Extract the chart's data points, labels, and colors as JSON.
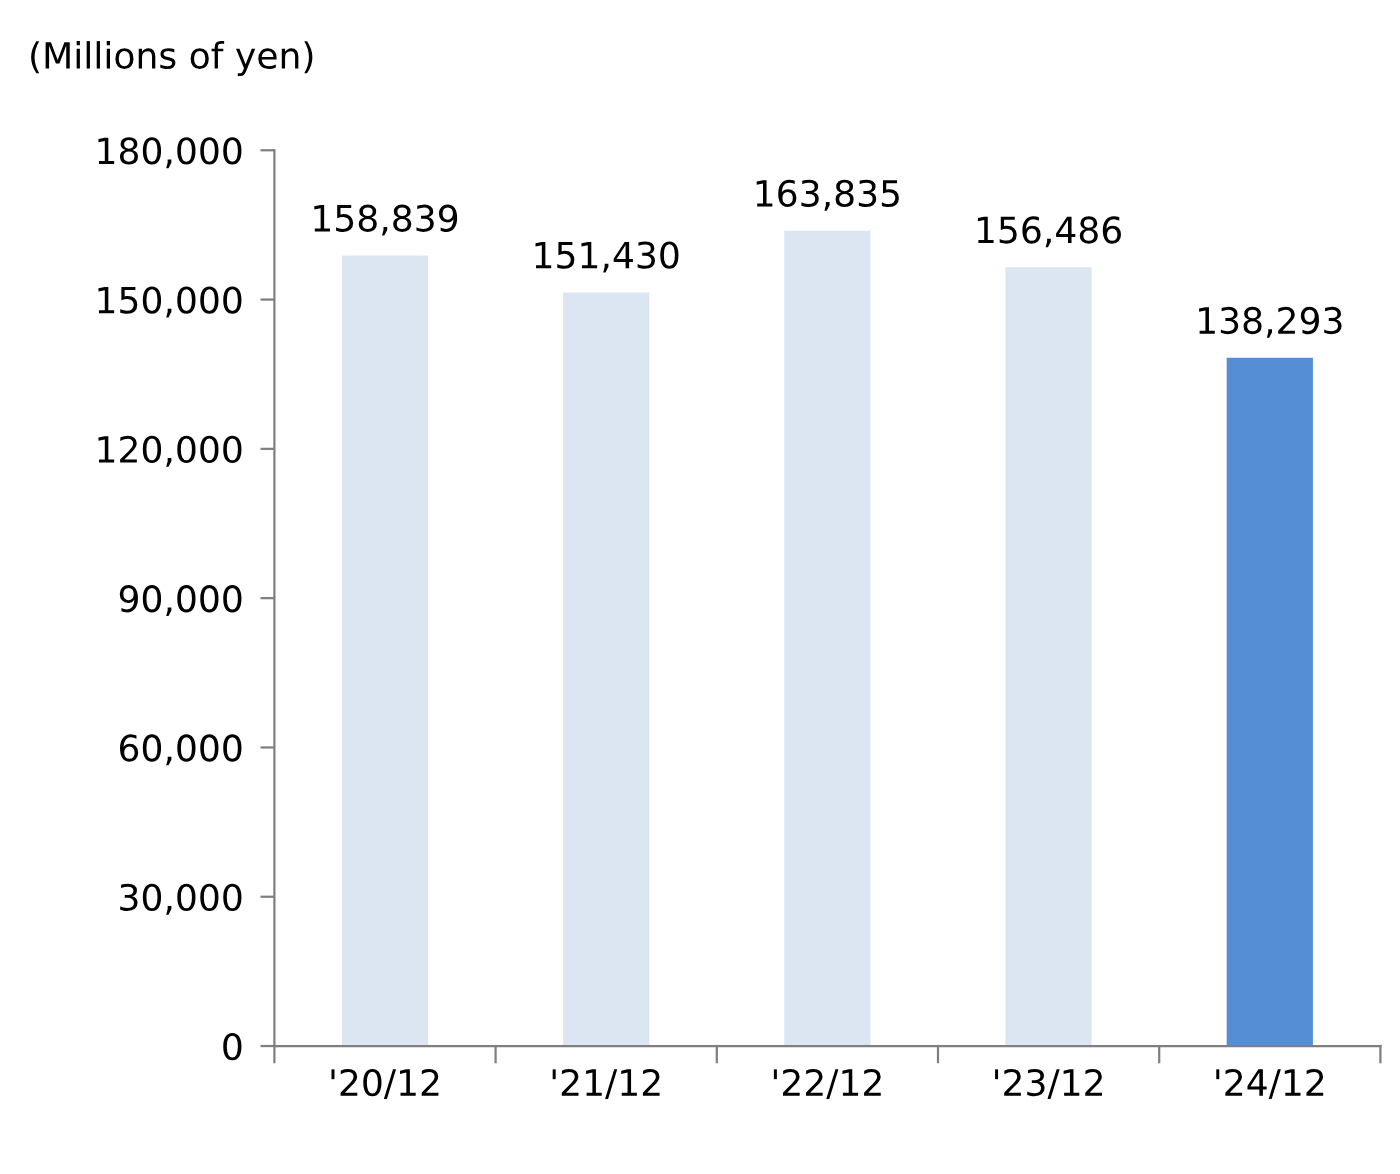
{
  "chart_data": {
    "type": "bar",
    "ylabel": "(Millions of yen)",
    "categories": [
      "'20/12",
      "'21/12",
      "'22/12",
      "'23/12",
      "'24/12"
    ],
    "values": [
      158839,
      151430,
      163835,
      156486,
      138293
    ],
    "colors": [
      "#dce6f2",
      "#dce6f2",
      "#dce6f2",
      "#dce6f2",
      "#558ed5"
    ],
    "value_labels": [
      "158,839",
      "151,430",
      "163,835",
      "156,486",
      "138,293"
    ],
    "ylim": [
      0,
      180000
    ],
    "yticks": [
      0,
      {
        "value": 30000,
        "label": "30,000"
      },
      {
        "value": 60000,
        "label": "60,000"
      },
      {
        "value": 90000,
        "label": "90,000"
      },
      {
        "value": 120000,
        "label": "120,000"
      },
      {
        "value": 150000,
        "label": "150,000"
      },
      {
        "value": 180000,
        "label": "180,000"
      }
    ],
    "grid": false,
    "legend": false
  }
}
